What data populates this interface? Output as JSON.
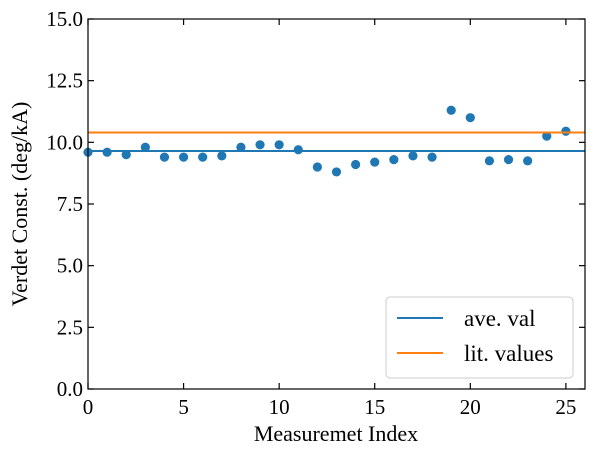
{
  "chart_data": {
    "type": "scatter",
    "title": "",
    "xlabel": "Measuremet Index",
    "ylabel": "Verdet Const. (deg/kA)",
    "xlim": [
      0,
      26
    ],
    "ylim": [
      0.0,
      15.0
    ],
    "x_ticks": [
      0,
      5,
      10,
      15,
      20,
      25
    ],
    "x_tick_labels": [
      "0",
      "5",
      "10",
      "15",
      "20",
      "25"
    ],
    "y_ticks": [
      0.0,
      2.5,
      5.0,
      7.5,
      10.0,
      12.5,
      15.0
    ],
    "y_tick_labels": [
      "0.0",
      "2.5",
      "5.0",
      "7.5",
      "10.0",
      "12.5",
      "15.0"
    ],
    "grid": false,
    "legend_position": "lower-right",
    "series": [
      {
        "kind": "scatter",
        "color": "#1f77b4",
        "x": [
          0,
          1,
          2,
          3,
          4,
          5,
          6,
          7,
          8,
          9,
          10,
          11,
          12,
          13,
          14,
          15,
          16,
          17,
          18,
          19,
          20,
          21,
          22,
          23,
          24,
          25
        ],
        "y": [
          9.6,
          9.6,
          9.5,
          9.8,
          9.4,
          9.4,
          9.4,
          9.45,
          9.8,
          9.9,
          9.9,
          9.7,
          9.0,
          8.8,
          9.1,
          9.2,
          9.3,
          9.45,
          9.4,
          11.3,
          11.0,
          9.25,
          9.3,
          9.25,
          10.25,
          10.45
        ]
      },
      {
        "kind": "hline",
        "name": "ave. val",
        "color": "#1f77b4",
        "y": 9.65
      },
      {
        "kind": "hline",
        "name": "lit. values",
        "color": "#ff7f0e",
        "y": 10.4
      }
    ]
  }
}
